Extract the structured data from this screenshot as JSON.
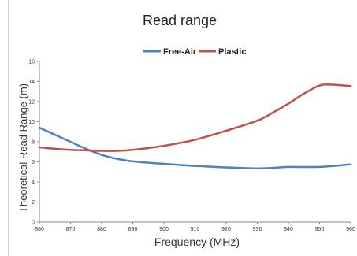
{
  "chart_data": {
    "type": "line",
    "title": "Read range",
    "xlabel": "Frequency (MHz)",
    "ylabel": "Theoretical Read Range (m)",
    "xlim": [
      860,
      960
    ],
    "ylim": [
      0,
      16
    ],
    "x_ticks": [
      "860",
      "870",
      "880",
      "890",
      "900",
      "910",
      "920",
      "930",
      "940",
      "950",
      "960"
    ],
    "y_ticks": [
      "0",
      "2",
      "4",
      "6",
      "8",
      "10",
      "12",
      "14",
      "16"
    ],
    "legend_position": "top-center",
    "grid": false,
    "series": [
      {
        "name": "Free-Air",
        "color": "#4f81bd",
        "x": [
          860,
          865,
          870,
          875,
          880,
          885,
          890,
          900,
          910,
          920,
          930,
          935,
          940,
          950,
          960
        ],
        "values": [
          9.4,
          8.7,
          8.0,
          7.3,
          6.7,
          6.3,
          6.05,
          5.8,
          5.6,
          5.45,
          5.35,
          5.4,
          5.5,
          5.5,
          5.75
        ]
      },
      {
        "name": "Plastic",
        "color": "#c0504d",
        "x": [
          860,
          865,
          870,
          875,
          880,
          885,
          890,
          900,
          910,
          920,
          930,
          935,
          940,
          945,
          950,
          953,
          956,
          960
        ],
        "values": [
          7.45,
          7.3,
          7.2,
          7.15,
          7.1,
          7.1,
          7.2,
          7.6,
          8.2,
          9.1,
          10.1,
          10.9,
          11.8,
          12.8,
          13.6,
          13.7,
          13.65,
          13.55
        ]
      }
    ]
  }
}
